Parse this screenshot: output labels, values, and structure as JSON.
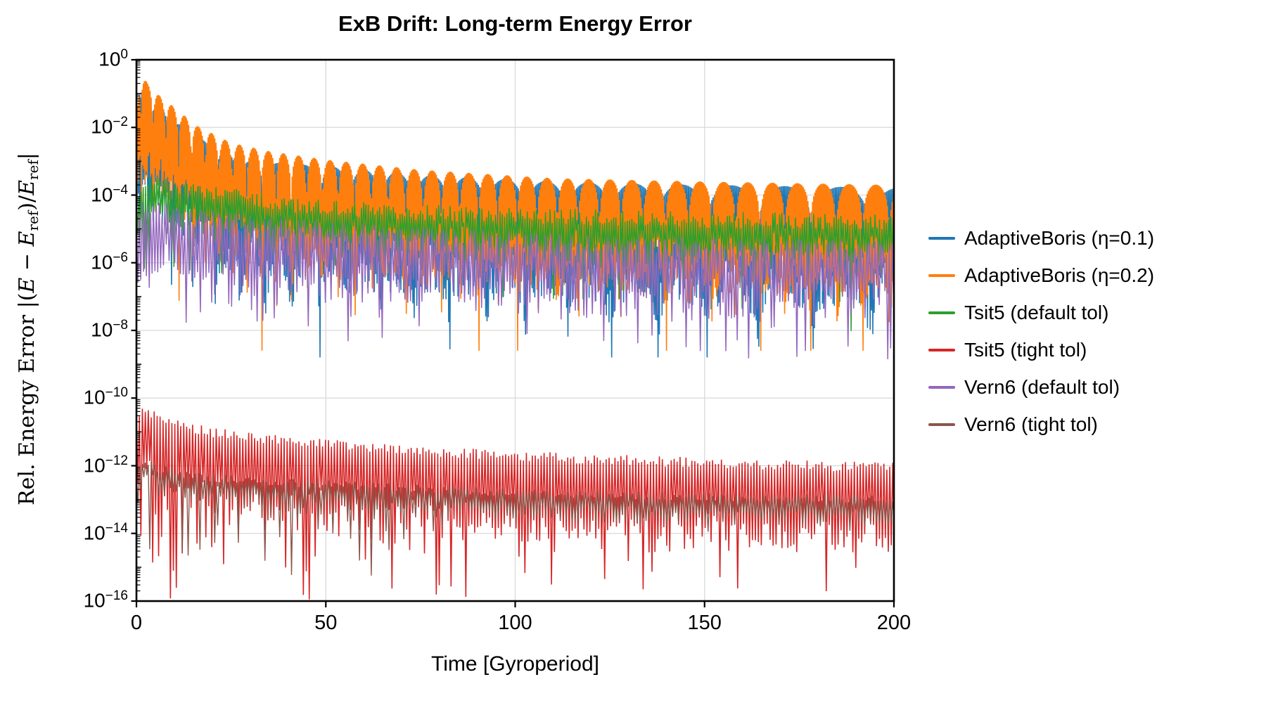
{
  "chart_data": {
    "type": "line",
    "title": "ExB Drift: Long-term Energy Error",
    "xlabel": "Time [Gyroperiod]",
    "ylabel": "Rel. Energy Error |(E − E_ref)/E_ref|",
    "ylabel_parts": [
      {
        "style": "roman",
        "text": "Rel. Energy Error "
      },
      {
        "style": "roman",
        "text": "|("
      },
      {
        "style": "italic",
        "text": "E"
      },
      {
        "style": "roman",
        "text": " − "
      },
      {
        "style": "italic",
        "text": "E"
      },
      {
        "style": "sub",
        "text": "ref"
      },
      {
        "style": "roman",
        "text": ")/"
      },
      {
        "style": "italic",
        "text": "E"
      },
      {
        "style": "sub",
        "text": "ref"
      },
      {
        "style": "roman",
        "text": "|"
      }
    ],
    "xlim": [
      0,
      200
    ],
    "ylim": [
      "1e-16",
      "1e0"
    ],
    "yscale": "log",
    "x_ticks": [
      0,
      50,
      100,
      150,
      200
    ],
    "y_tick_exponents": [
      0,
      -2,
      -4,
      -6,
      -8,
      -10,
      -12,
      -14,
      -16
    ],
    "grid": true,
    "grid_color": "#d9d9d9",
    "spine_color": "#000000",
    "background": "#ffffff",
    "legend": {
      "location": "outside right"
    },
    "series": [
      {
        "name": "AdaptiveBoris (η=0.1)",
        "color": "#1f77b4",
        "texture": "arcs",
        "env_t": [
          0,
          1.2,
          3,
          7,
          12,
          20,
          30,
          50,
          75,
          110,
          150,
          200
        ],
        "env_log10": [
          -2.3,
          -0.95,
          -1.0,
          -1.45,
          -1.95,
          -2.55,
          -3.0,
          -3.15,
          -3.4,
          -3.6,
          -3.7,
          -3.78
        ],
        "arch_period": [
          5,
          16
        ],
        "phase0": 0.2,
        "step": 0.35,
        "cusp": 3.9,
        "dep": [
          1.9,
          1.6
        ],
        "floor": -8.8,
        "seed": 7,
        "width": 1.6
      },
      {
        "name": "AdaptiveBoris (η=0.2)",
        "color": "#ff7f0e",
        "texture": "arcs",
        "env_t": [
          0,
          1,
          3,
          6,
          10,
          16,
          25,
          35,
          50,
          75,
          110,
          150,
          200
        ],
        "env_log10": [
          -1.6,
          -0.35,
          -0.7,
          -1.05,
          -1.4,
          -1.95,
          -2.45,
          -2.7,
          -2.95,
          -3.25,
          -3.5,
          -3.6,
          -3.7
        ],
        "arch_period": [
          3.2,
          7.2
        ],
        "phase0": 0.55,
        "step": 0.3,
        "cusp": 3.8,
        "dep": [
          1.7,
          1.5
        ],
        "floor": -8.6,
        "seed": 13,
        "width": 1.6
      },
      {
        "name": "Tsit5 (default tol)",
        "color": "#2ca02c",
        "texture": "band",
        "env_t": [
          0,
          1,
          4,
          10,
          20,
          40,
          70,
          100,
          150,
          200
        ],
        "env_log10": [
          -4.2,
          -3.9,
          -3.6,
          -3.75,
          -3.95,
          -4.25,
          -4.5,
          -4.62,
          -4.72,
          -4.78
        ],
        "step": 0.6,
        "jit": 0.25,
        "dep": [
          0.55,
          0.8
        ],
        "p2": 0.1,
        "d2": [
          1.5,
          1.0
        ],
        "p3": 0.004,
        "d3": [
          2.9,
          1.0
        ],
        "floor": -8.3,
        "seed": 21,
        "width": 1.5
      },
      {
        "name": "Tsit5 (tight tol)",
        "color": "#d62728",
        "texture": "comb",
        "env_t": [
          0,
          1.5,
          5,
          12,
          25,
          50,
          80,
          120,
          160,
          200
        ],
        "env_log10": [
          -10.6,
          -10.3,
          -10.5,
          -10.85,
          -11.1,
          -11.37,
          -11.6,
          -11.8,
          -11.95,
          -12.05
        ],
        "step": 0.78,
        "jit": 0.15,
        "dep": [
          1.5,
          1.0
        ],
        "p2": 0.32,
        "a2": [
          -13.2,
          1.4
        ],
        "p3": 0.1,
        "a3": [
          -14.6,
          1.4
        ],
        "earlyT": 0,
        "pE": 0,
        "aE": [
          -14,
          1
        ],
        "floor": -16.0,
        "seed": 42,
        "width": 1.6
      },
      {
        "name": "Vern6 (default tol)",
        "color": "#9467bd",
        "texture": "band",
        "env_t": [
          0,
          1.5,
          5,
          15,
          30,
          60,
          100,
          150,
          200
        ],
        "env_log10": [
          -4.8,
          -4.35,
          -4.4,
          -4.65,
          -4.85,
          -5.1,
          -5.35,
          -5.5,
          -5.55
        ],
        "step": 0.75,
        "jit": 0.25,
        "dep": [
          1.0,
          1.1
        ],
        "p2": 0.18,
        "d2": [
          2.1,
          1.1
        ],
        "p3": 0.012,
        "d3": [
          3.1,
          0.9
        ],
        "floor": -9.1,
        "seed": 33,
        "width": 1.5
      },
      {
        "name": "Vern6 (tight tol)",
        "color": "#8c564b",
        "texture": "comb",
        "env_t": [
          0,
          2,
          6,
          15,
          30,
          60,
          100,
          150,
          200
        ],
        "env_log10": [
          -12.3,
          -11.85,
          -12.1,
          -12.3,
          -12.45,
          -12.6,
          -12.8,
          -12.92,
          -12.98
        ],
        "step": 0.78,
        "jit": 0.12,
        "dep": [
          0.35,
          0.5
        ],
        "p2": 0.06,
        "a2": [
          -13.3,
          0.7
        ],
        "p3": 0,
        "a3": [
          -14,
          1
        ],
        "earlyT": 75,
        "pE": 0.18,
        "aE": [
          -13.8,
          2.0
        ],
        "floor": -15.9,
        "seed": 55,
        "width": 1.4
      }
    ]
  }
}
